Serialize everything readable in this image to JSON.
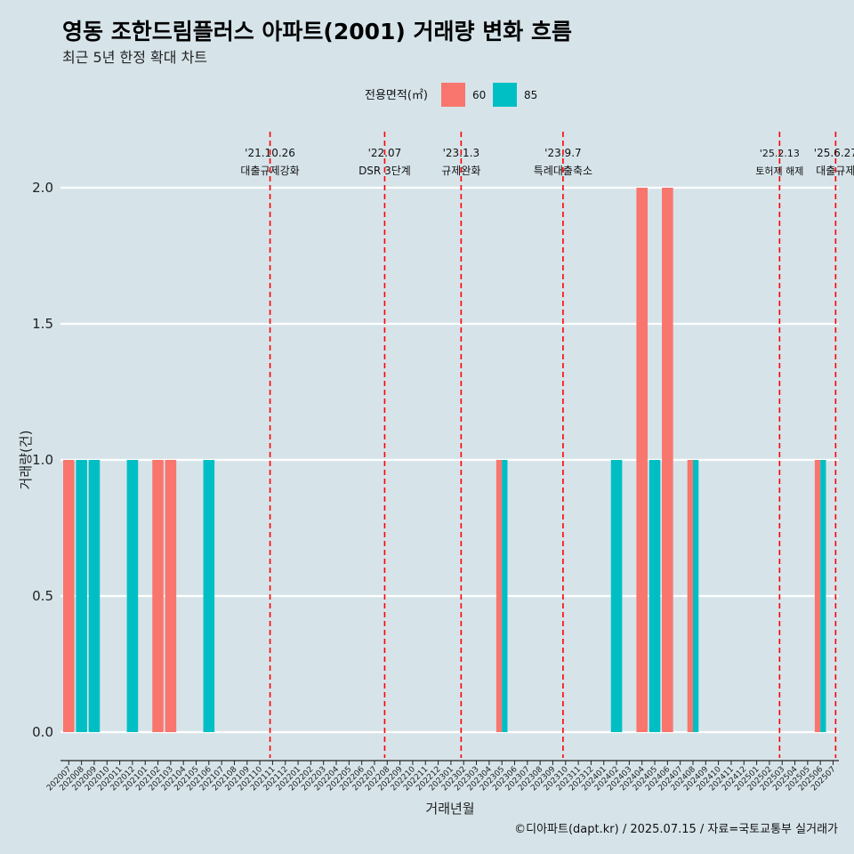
{
  "chart_data": {
    "type": "bar",
    "title": "영동 조한드림플러스 아파트(2001) 거래량 변화 흐름",
    "subtitle": "최근 5년 한정 확대 차트",
    "xlabel": "거래년월",
    "ylabel": "거래량(건)",
    "ylim": [
      0,
      2
    ],
    "yticks": [
      "0.0",
      "0.5",
      "1.0",
      "1.5",
      "2.0"
    ],
    "grid": true,
    "legend": {
      "title": "전용면적(㎡)",
      "position": "top"
    },
    "categories": [
      "202007",
      "202008",
      "202009",
      "202010",
      "202011",
      "202012",
      "202101",
      "202102",
      "202103",
      "202104",
      "202105",
      "202106",
      "202107",
      "202108",
      "202109",
      "202110",
      "202111",
      "202112",
      "202201",
      "202202",
      "202203",
      "202204",
      "202205",
      "202206",
      "202207",
      "202208",
      "202209",
      "202210",
      "202211",
      "202212",
      "202301",
      "202302",
      "202303",
      "202304",
      "202305",
      "202306",
      "202307",
      "202308",
      "202309",
      "202310",
      "202311",
      "202312",
      "202401",
      "202402",
      "202403",
      "202404",
      "202405",
      "202406",
      "202407",
      "202408",
      "202409",
      "202410",
      "202411",
      "202412",
      "202501",
      "202502",
      "202503",
      "202504",
      "202505",
      "202506",
      "202507"
    ],
    "series": [
      {
        "name": "60",
        "color": "#f8766d",
        "values": [
          1,
          0,
          0,
          0,
          0,
          0,
          0,
          1,
          1,
          0,
          0,
          0,
          0,
          0,
          0,
          0,
          0,
          0,
          0,
          0,
          0,
          0,
          0,
          0,
          0,
          0,
          0,
          0,
          0,
          0,
          0,
          0,
          0,
          0,
          1,
          0,
          0,
          0,
          0,
          0,
          0,
          0,
          0,
          0,
          0,
          2,
          0,
          2,
          0,
          1,
          0,
          0,
          0,
          0,
          0,
          0,
          0,
          0,
          0,
          1,
          0
        ]
      },
      {
        "name": "85",
        "color": "#00bfc4",
        "values": [
          0,
          1,
          1,
          0,
          0,
          1,
          0,
          0,
          0,
          0,
          0,
          1,
          0,
          0,
          0,
          0,
          0,
          0,
          0,
          0,
          0,
          0,
          0,
          0,
          0,
          0,
          0,
          0,
          0,
          0,
          0,
          0,
          0,
          0,
          1,
          0,
          0,
          0,
          0,
          0,
          0,
          0,
          0,
          1,
          0,
          0,
          1,
          0,
          0,
          1,
          0,
          0,
          0,
          0,
          0,
          0,
          0,
          0,
          0,
          1,
          0
        ]
      }
    ],
    "events": [
      {
        "date": "'21.10.26",
        "label": "대출규제강화",
        "x": 15.8
      },
      {
        "date": "'22.07",
        "label": "DSR 3단계",
        "x": 24.8
      },
      {
        "date": "'23.1.3",
        "label": "규제완화",
        "x": 30.8
      },
      {
        "date": "'23.9.7",
        "label": "특례대출축소",
        "x": 38.8
      },
      {
        "date": "'25.2.13",
        "label": "토허제 해제",
        "x": 55.8
      },
      {
        "date": "'25.6.27",
        "label": "대출규제",
        "x": 60.2
      }
    ],
    "caption": "©디아파트(dapt.kr) / 2025.07.15 / 자료=국토교통부 실거래가"
  }
}
